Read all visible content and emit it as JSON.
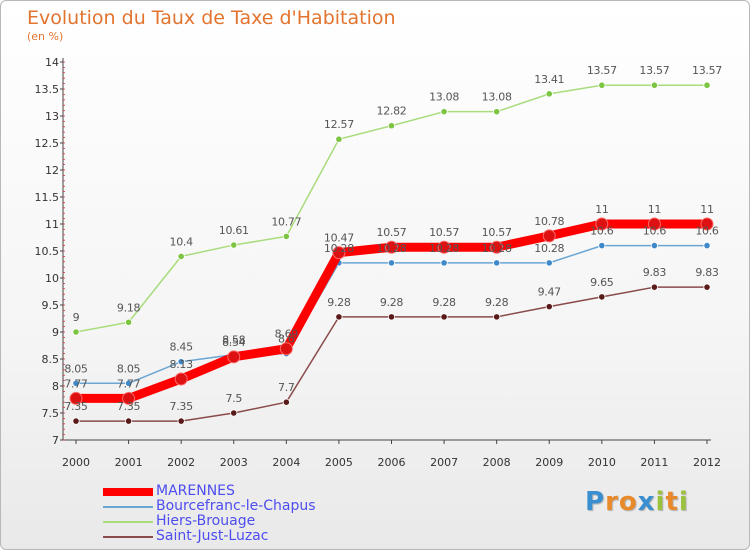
{
  "title": "Evolution du Taux de Taxe d'Habitation",
  "subtitle": "(en %)",
  "brand": {
    "letters": [
      {
        "ch": "P",
        "color": "#3a8fd0"
      },
      {
        "ch": "r",
        "color": "#e88a2a"
      },
      {
        "ch": "o",
        "color": "#e88a2a"
      },
      {
        "ch": "x",
        "color": "#3a8fd0"
      },
      {
        "ch": "i",
        "color": "#9ac23c"
      },
      {
        "ch": "t",
        "color": "#e88a2a"
      },
      {
        "ch": "i",
        "color": "#9ac23c"
      }
    ]
  },
  "chart_data": {
    "type": "line",
    "title": "Evolution du Taux de Taxe d'Habitation",
    "ylabel": "(en %)",
    "xlabel": "",
    "x": [
      "2000",
      "2001",
      "2002",
      "2003",
      "2004",
      "2005",
      "2006",
      "2007",
      "2008",
      "2009",
      "2010",
      "2011",
      "2012"
    ],
    "ylim": [
      7,
      14
    ],
    "yticks": [
      "7",
      "7.5",
      "8",
      "8.5",
      "9",
      "9.5",
      "10",
      "10.5",
      "11",
      "11.5",
      "12",
      "12.5",
      "13",
      "13.5",
      "14"
    ],
    "grid": false,
    "legend": "bottom-left",
    "series": [
      {
        "name": "MARENNES",
        "color": "#ff0000",
        "marker": "#dd1111",
        "values": [
          7.77,
          7.77,
          8.13,
          8.54,
          8.69,
          10.47,
          10.57,
          10.57,
          10.57,
          10.78,
          11,
          11,
          11
        ],
        "labels": [
          "7.77",
          "7.77",
          "8.13",
          "8.54",
          "8.69",
          "10.47",
          "10.57",
          "10.57",
          "10.57",
          "10.78",
          "11",
          "11",
          "11"
        ]
      },
      {
        "name": "Bourcefranc-le-Chapus",
        "color": "#6aa6d4",
        "marker": "#3f88c9",
        "values": [
          8.05,
          8.05,
          8.45,
          8.58,
          8.6,
          10.28,
          10.28,
          10.28,
          10.28,
          10.28,
          10.6,
          10.6,
          10.6
        ],
        "labels": [
          "8.05",
          "8.05",
          "8.45",
          "8.58",
          "8.6",
          "10.28",
          "10.28",
          "10.28",
          "10.28",
          "10.28",
          "10.6",
          "10.6",
          "10.6"
        ]
      },
      {
        "name": "Hiers-Brouage",
        "color": "#a8dc7c",
        "marker": "#7cc442",
        "values": [
          9,
          9.18,
          10.4,
          10.61,
          10.77,
          12.57,
          12.82,
          13.08,
          13.08,
          13.41,
          13.57,
          13.57,
          13.57
        ],
        "labels": [
          "9",
          "9.18",
          "10.4",
          "10.61",
          "10.77",
          "12.57",
          "12.82",
          "13.08",
          "13.08",
          "13.41",
          "13.57",
          "13.57",
          "13.57"
        ]
      },
      {
        "name": "Saint-Just-Luzac",
        "color": "#8a4a4a",
        "marker": "#5a1a1a",
        "values": [
          7.35,
          7.35,
          7.35,
          7.5,
          7.7,
          9.28,
          9.28,
          9.28,
          9.28,
          9.47,
          9.65,
          9.83,
          9.83
        ],
        "labels": [
          "7.35",
          "7.35",
          "7.35",
          "7.5",
          "7.7",
          "9.28",
          "9.28",
          "9.28",
          "9.28",
          "9.47",
          "9.65",
          "9.83",
          "9.83"
        ]
      }
    ]
  }
}
